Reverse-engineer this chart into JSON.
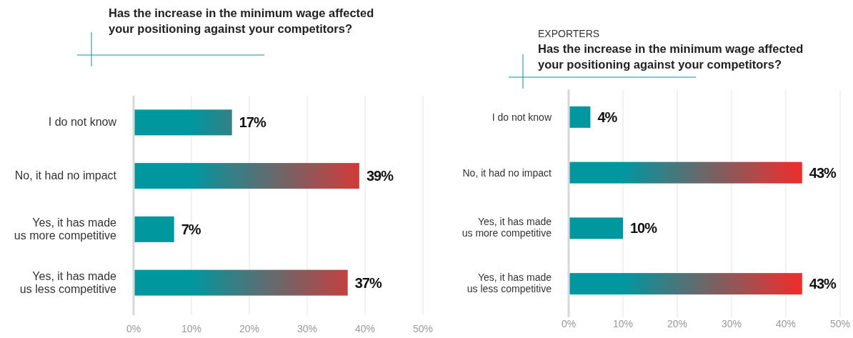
{
  "chart_data": [
    {
      "type": "bar",
      "orientation": "horizontal",
      "title": "Has the increase in the minimum wage affected your positioning against your competitors?",
      "categories": [
        "I do not know",
        "No, it had no impact",
        "Yes, it has made us more competitive",
        "Yes, it has made us less competitive"
      ],
      "series": [
        {
          "color": "#00979f",
          "values": [
            17,
            39,
            7,
            37
          ],
          "value_labels": [
            "17%",
            "39%",
            "7%",
            "37%"
          ]
        }
      ],
      "xlim": [
        0,
        50
      ],
      "xticks": [
        {
          "value": 0,
          "label": "0%"
        },
        {
          "value": 10,
          "label": "10%"
        },
        {
          "value": 20,
          "label": "20%"
        },
        {
          "value": 30,
          "label": "30%"
        },
        {
          "value": 40,
          "label": "40%"
        },
        {
          "value": 50,
          "label": "50%"
        }
      ],
      "grid": "x"
    },
    {
      "type": "bar",
      "orientation": "horizontal",
      "subtitle": "EXPORTERS",
      "title": "Has the increase in the minimum wage affected your positioning against your competitors?",
      "categories": [
        "I do not know",
        "No, it had no impact",
        "Yes, it has made us more competitive",
        "Yes, it has made us less competitive"
      ],
      "series": [
        {
          "color": "#00979f",
          "values": [
            4,
            43,
            10,
            43
          ],
          "value_labels": [
            "4%",
            "43%",
            "10%",
            "43%"
          ]
        }
      ],
      "xlim": [
        0,
        50
      ],
      "xticks": [
        {
          "value": 0,
          "label": "0%"
        },
        {
          "value": 10,
          "label": "10%"
        },
        {
          "value": 20,
          "label": "20%"
        },
        {
          "value": 30,
          "label": "30%"
        },
        {
          "value": 40,
          "label": "40%"
        },
        {
          "value": 50,
          "label": "50%"
        }
      ],
      "grid": "x"
    }
  ]
}
